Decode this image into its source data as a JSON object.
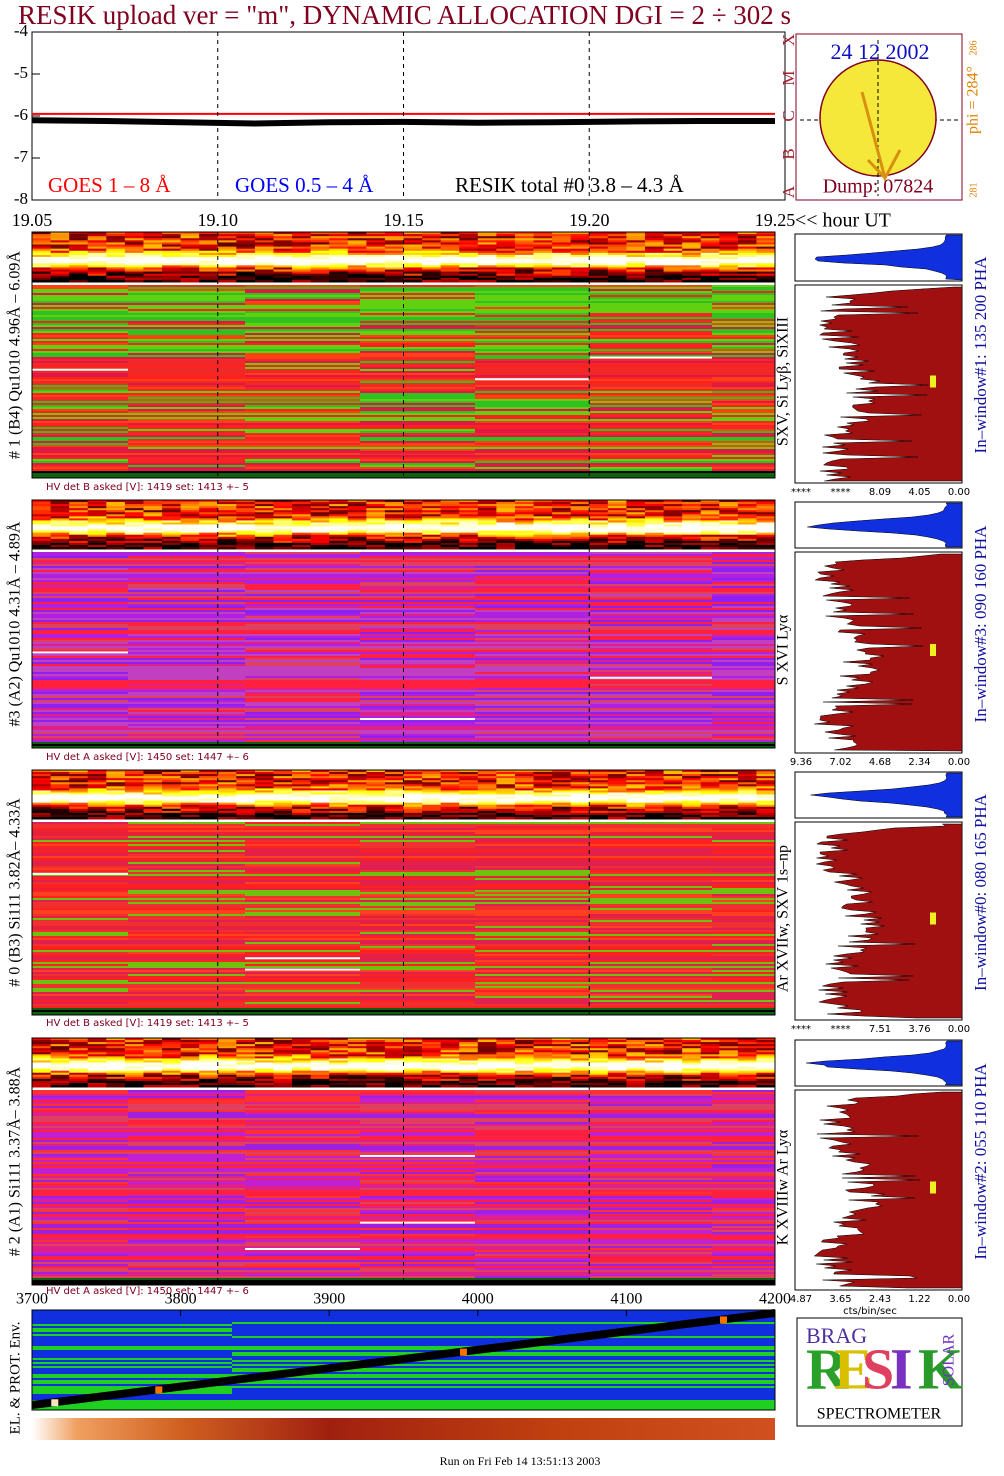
{
  "title": "RESIK upload ver = \"m\", DYNAMIC ALLOCATION  DGI =   2 ÷ 302 s",
  "goes_plot": {
    "ylim": [
      -8,
      -4
    ],
    "yticks": [
      -4,
      -5,
      -6,
      -7,
      -8
    ],
    "flare_classes": [
      "X",
      "M",
      "C",
      "B",
      "A"
    ],
    "xlim": [
      19.05,
      19.25
    ],
    "xticks": [
      19.05,
      {
        "value": 19.1,
        "label": "19.10"
      },
      19.15,
      {
        "value": 19.2,
        "label": "19.20"
      },
      19.25
    ],
    "x_unit": "<< hour UT",
    "x": [
      19.05,
      19.07,
      19.09,
      19.11,
      19.13,
      19.15,
      19.17,
      19.19,
      19.21,
      19.23,
      19.25
    ],
    "series": [
      {
        "name": "GOES 1 – 8 Å",
        "color": "#ff0000",
        "values": [
          -5.95,
          -5.95,
          -5.95,
          -5.95,
          -5.95,
          -5.95,
          -5.95,
          -5.95,
          -5.95,
          -5.95,
          -5.95
        ]
      },
      {
        "name": "GOES 0.5 – 4 Å",
        "color": "#0000ff",
        "values": [
          null,
          null,
          null,
          null,
          null,
          null,
          null,
          null,
          null,
          null,
          null
        ]
      },
      {
        "name": "RESIK total #0  3.8 – 4.3 Å",
        "color": "#000000",
        "values": [
          -6.1,
          -6.12,
          -6.15,
          -6.18,
          -6.15,
          -6.14,
          -6.16,
          -6.15,
          -6.13,
          -6.12,
          -6.12
        ]
      }
    ]
  },
  "sun": {
    "date": "24 12 2002",
    "phi": "phi = 284°",
    "phi_max": "286",
    "phi_min": "281",
    "dump": "Dump: 07824"
  },
  "panels": [
    {
      "label": "# 1 (B4) Qu1010 4.96Å – 6.09Å",
      "hv": "HV det B asked [V]:  1419 set:  1413  +–    5",
      "lines": "SXV, Si Lyβ, SiXIII",
      "window": "In–window#1:  135 200 PHA",
      "ticks": [
        "****",
        "****",
        "8.09",
        "4.05",
        "0.00"
      ]
    },
    {
      "label": "#3 (A2) Qu1010  4.31Å – 4.89Å",
      "hv": "HV det A asked [V]:  1450 set:  1447  +–    6",
      "lines": "S XVI Lyα",
      "window": "In–window#3:  090 160 PHA",
      "ticks": [
        "9.36",
        "7.02",
        "4.68",
        "2.34",
        "0.00"
      ]
    },
    {
      "label": "# 0 (B3) Si111  3.82Å– 4.33Å",
      "hv": "HV det B asked [V]:  1419 set:  1413  +–    5",
      "lines": "Ar XVIIw, SXV 1s–np",
      "window": "In–window#0:  080 165 PHA",
      "ticks": [
        "****",
        "****",
        "7.51",
        "3.76",
        "0.00"
      ]
    },
    {
      "label": "# 2 (A1) Si111  3.37Å– 3.88Å",
      "hv": "HV det A asked [V]:  1450 set:  1447  +–    6",
      "lines": "K XVIIIw  Ar Lyα",
      "window": "In–window#2:  055 110 PHA",
      "ticks": [
        "4.87",
        "3.65",
        "2.43",
        "1.22",
        "0.00"
      ]
    }
  ],
  "hist_unit": "cts/bin/sec",
  "env_panel": {
    "label": "EL. & PROT. Env.",
    "xlim": [
      3700,
      4200
    ],
    "xticks": [
      3700,
      3800,
      3900,
      4000,
      4100,
      4200
    ]
  },
  "logo": {
    "brag": "BRAG",
    "resik": [
      "R",
      "E",
      "S",
      "I",
      "K"
    ],
    "solar": "SOLAR",
    "spectrometer": "SPECTROMETER"
  },
  "footer": "Run on Fri Feb 14 13:51:13 2003"
}
